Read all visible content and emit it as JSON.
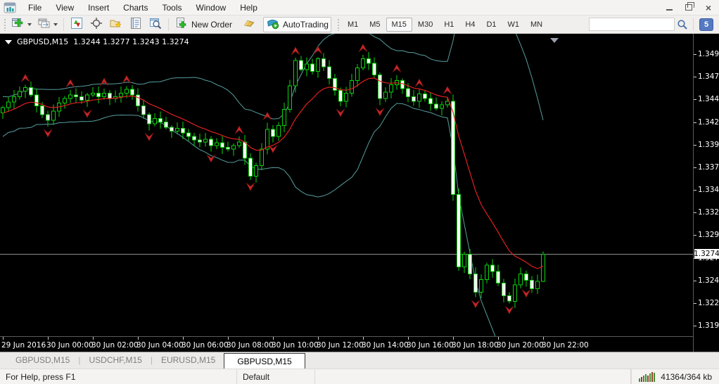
{
  "menu": {
    "items": [
      "File",
      "View",
      "Insert",
      "Charts",
      "Tools",
      "Window",
      "Help"
    ]
  },
  "toolbar": {
    "new_order_label": "New Order",
    "autotrading_label": "AutoTrading",
    "timeframes": [
      "M1",
      "M5",
      "M15",
      "M30",
      "H1",
      "H4",
      "D1",
      "W1",
      "MN"
    ],
    "active_timeframe": "M15",
    "search_value": "",
    "notification_count": "5"
  },
  "chart": {
    "title": {
      "symbol": "GBPUSD,M15",
      "ohlc": "1.3244 1.3277 1.3243 1.3274"
    },
    "current_price": "1.3274",
    "price_labels": [
      "1.3495",
      "1.3470",
      "1.3445",
      "1.3420",
      "1.3395",
      "1.3370",
      "1.3345",
      "1.3320",
      "1.3295",
      "1.3270",
      "1.3245",
      "1.3220",
      "1.3195"
    ],
    "time_labels": [
      {
        "bar": 0,
        "label": "29 Jun 2016"
      },
      {
        "bar": 8,
        "label": "30 Jun 00:00"
      },
      {
        "bar": 16,
        "label": "30 Jun 02:00"
      },
      {
        "bar": 24,
        "label": "30 Jun 04:00"
      },
      {
        "bar": 32,
        "label": "30 Jun 06:00"
      },
      {
        "bar": 40,
        "label": "30 Jun 08:00"
      },
      {
        "bar": 48,
        "label": "30 Jun 10:00"
      },
      {
        "bar": 56,
        "label": "30 Jun 12:00"
      },
      {
        "bar": 64,
        "label": "30 Jun 14:00"
      },
      {
        "bar": 72,
        "label": "30 Jun 16:00"
      },
      {
        "bar": 80,
        "label": "30 Jun 18:00"
      },
      {
        "bar": 88,
        "label": "30 Jun 20:00"
      },
      {
        "bar": 96,
        "label": "30 Jun 22:00"
      }
    ],
    "pre_closes": [
      1.339,
      1.34,
      1.3412,
      1.3405,
      1.3418,
      1.3425,
      1.3415,
      1.3428,
      1.342,
      1.3432,
      1.3425,
      1.3436,
      1.343,
      1.344,
      1.3434,
      1.3442,
      1.3436,
      1.343,
      1.3426,
      1.343
    ],
    "closes": [
      1.3436,
      1.3442,
      1.3448,
      1.3454,
      1.3458,
      1.345,
      1.3438,
      1.3428,
      1.3422,
      1.3432,
      1.3441,
      1.3446,
      1.345,
      1.3448,
      1.3444,
      1.345,
      1.3452,
      1.3448,
      1.3452,
      1.3446,
      1.3448,
      1.3452,
      1.3456,
      1.345,
      1.3438,
      1.3428,
      1.3418,
      1.3424,
      1.342,
      1.3414,
      1.341,
      1.3413,
      1.3408,
      1.3404,
      1.34,
      1.3398,
      1.3401,
      1.3394,
      1.3397,
      1.3392,
      1.339,
      1.3394,
      1.3398,
      1.338,
      1.336,
      1.3372,
      1.339,
      1.3412,
      1.3404,
      1.3416,
      1.3434,
      1.346,
      1.3488,
      1.3478,
      1.3484,
      1.3476,
      1.349,
      1.3481,
      1.3468,
      1.3455,
      1.3443,
      1.3452,
      1.3466,
      1.348,
      1.349,
      1.3485,
      1.3472,
      1.3446,
      1.3453,
      1.3461,
      1.3466,
      1.3457,
      1.3448,
      1.3443,
      1.3451,
      1.3446,
      1.344,
      1.3435,
      1.3439,
      1.3443,
      1.334,
      1.326,
      1.3274,
      1.3252,
      1.3232,
      1.3246,
      1.3262,
      1.3255,
      1.3242,
      1.3228,
      1.3222,
      1.324,
      1.3252,
      1.3245,
      1.3236,
      1.3244,
      1.3274
    ],
    "last_ohlc": [
      1.3244,
      1.3277,
      1.3243,
      1.3274
    ],
    "arrows": {
      "up": [
        4,
        12,
        18,
        22,
        42,
        47,
        52,
        56,
        64,
        70,
        74,
        79
      ],
      "down": [
        8,
        15,
        26,
        37,
        44,
        48,
        60,
        67,
        84,
        90,
        93
      ]
    },
    "indicators": {
      "bollinger_period": 20,
      "bollinger_deviation": 2,
      "ma_period": 12
    },
    "shift_marker_bar": 98,
    "colors": {
      "background": "#000000",
      "bull_body": "#000000",
      "bear_body": "#ffffff",
      "candle_outline": "#0bd40b",
      "bands": "#579e9e",
      "ma": "#e02020",
      "arrow": "#c62828",
      "price_line": "#8f8f8f",
      "shift_marker": "#9aa0b0"
    }
  },
  "tabs": {
    "items": [
      {
        "label": "GBPUSD,M15",
        "active": false
      },
      {
        "label": "USDCHF,M15",
        "active": false
      },
      {
        "label": "EURUSD,M15",
        "active": false
      },
      {
        "label": "GBPUSD,M15",
        "active": true
      }
    ]
  },
  "status": {
    "help": "For Help, press F1",
    "profile": "Default",
    "traffic": "41364/364 kb"
  }
}
